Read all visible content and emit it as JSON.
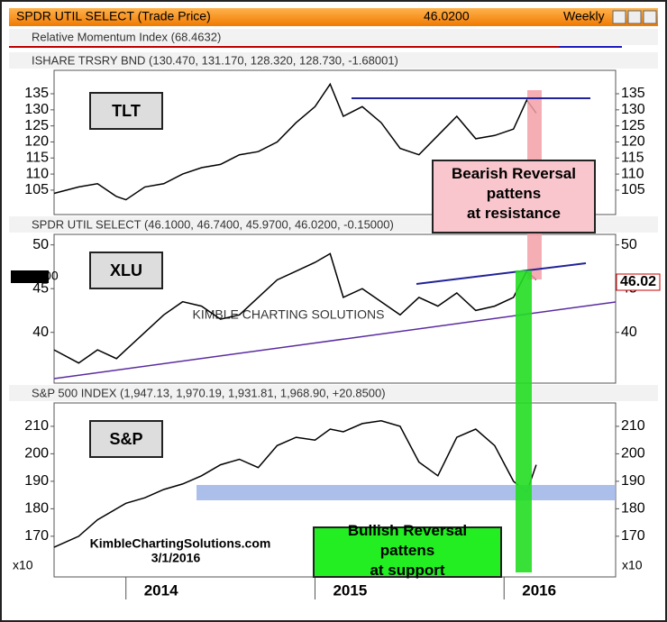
{
  "window": {
    "title": "SPDR UTIL SELECT (Trade Price)",
    "price": "46.0200",
    "interval": "Weekly"
  },
  "rmi_label": "Relative Momentum Index (68.4632)",
  "watermark": "KIMBLE CHARTING SOLUTIONS",
  "site": "KimbleChartingSolutions.com",
  "date": "3/1/2016",
  "chart_data": [
    {
      "type": "line",
      "header": "ISHARE TRSRY BND (130.470, 131.170, 128.320, 128.730, -1.68001)",
      "label": "TLT",
      "annotation": "Bearish Reversal pattens at resistance",
      "color": "#000000",
      "x": [
        2013.62,
        2013.75,
        2013.85,
        2013.95,
        2014.0,
        2014.1,
        2014.2,
        2014.3,
        2014.4,
        2014.5,
        2014.6,
        2014.7,
        2014.8,
        2014.9,
        2015.0,
        2015.08,
        2015.15,
        2015.25,
        2015.35,
        2015.45,
        2015.55,
        2015.65,
        2015.75,
        2015.85,
        2015.95,
        2016.05,
        2016.12,
        2016.17
      ],
      "values": [
        104,
        106,
        107,
        103,
        102,
        106,
        107,
        110,
        112,
        113,
        116,
        117,
        120,
        126,
        131,
        138,
        128,
        131,
        126,
        118,
        116,
        122,
        128,
        121,
        122,
        124,
        133,
        129
      ],
      "xlim": [
        2013.62,
        2016.59
      ],
      "ylim": [
        97.4,
        142.3
      ],
      "yticks": [
        105,
        110,
        115,
        120,
        125,
        130,
        135
      ]
    },
    {
      "type": "line",
      "header": "SPDR UTIL SELECT (46.1000, 46.7400, 45.9700, 46.0200, -0.15000)",
      "label": "XLU",
      "price_tag": "46.02",
      "color": "#000000",
      "x": [
        2013.62,
        2013.75,
        2013.85,
        2013.95,
        2014.0,
        2014.1,
        2014.2,
        2014.3,
        2014.4,
        2014.5,
        2014.6,
        2014.7,
        2014.8,
        2014.9,
        2015.0,
        2015.08,
        2015.15,
        2015.25,
        2015.35,
        2015.45,
        2015.55,
        2015.65,
        2015.75,
        2015.85,
        2015.95,
        2016.05,
        2016.12,
        2016.17
      ],
      "values": [
        38,
        36.5,
        38,
        37,
        38,
        40,
        42,
        43.5,
        43,
        41.5,
        42,
        44,
        46,
        47,
        48,
        49,
        44,
        45,
        43.5,
        42,
        44,
        43,
        44.5,
        42.5,
        43,
        44,
        47,
        46.02
      ],
      "xlim": [
        2013.62,
        2016.59
      ],
      "ylim": [
        34.2,
        51.2
      ],
      "yticks": [
        40,
        45,
        50
      ]
    },
    {
      "type": "line",
      "header": "S&P 500 INDEX (1,947.13, 1,970.19, 1,931.81, 1,968.90, +20.8500)",
      "label": "S&P",
      "annotation": "Bullish Reversal pattens at support",
      "scale_note": "x10",
      "color": "#000000",
      "x": [
        2013.62,
        2013.75,
        2013.85,
        2013.95,
        2014.0,
        2014.1,
        2014.2,
        2014.3,
        2014.4,
        2014.5,
        2014.6,
        2014.7,
        2014.8,
        2014.9,
        2015.0,
        2015.08,
        2015.15,
        2015.25,
        2015.35,
        2015.45,
        2015.55,
        2015.65,
        2015.75,
        2015.85,
        2015.95,
        2016.05,
        2016.12,
        2016.17
      ],
      "values": [
        166,
        170,
        176,
        180,
        182,
        184,
        187,
        189,
        192,
        196,
        198,
        195,
        203,
        206,
        205,
        209,
        208,
        211,
        212,
        210,
        197,
        192,
        206,
        209,
        203,
        190,
        186,
        196
      ],
      "xlim": [
        2013.62,
        2016.59
      ],
      "ylim": [
        155.2,
        218.5
      ],
      "yticks": [
        170,
        180,
        190,
        200,
        210
      ],
      "xticks": [
        2014,
        2015,
        2016
      ]
    }
  ]
}
